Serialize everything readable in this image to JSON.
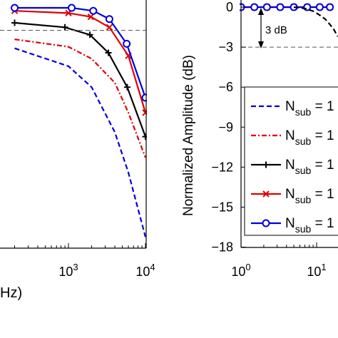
{
  "chart_data": [
    {
      "type": "line",
      "title": "",
      "xlabel": "Hz)",
      "ylabel": "",
      "x_scale": "log",
      "grid": false,
      "x_tick_labels": [
        {
          "base": "10",
          "exp": "3"
        },
        {
          "base": "10",
          "exp": "4"
        }
      ],
      "series": [
        {
          "color": "#0000dd",
          "linestyle": "dashed",
          "marker": "none",
          "x": [
            200,
            1000,
            2000,
            4000,
            6000,
            10000
          ],
          "y": [
            -2.7,
            -3.9,
            -5.3,
            -8.3,
            -11.0,
            -15.3
          ]
        },
        {
          "color": "#e00000",
          "linestyle": "dashdot",
          "marker": "none",
          "x": [
            200,
            1000,
            2000,
            4000,
            6000,
            10000
          ],
          "y": [
            -2.1,
            -2.6,
            -3.4,
            -5.0,
            -7.0,
            -10.0
          ]
        },
        {
          "color": "#000000",
          "linestyle": "solid",
          "marker": "plus",
          "x": [
            200,
            900,
            1900,
            3300,
            5800,
            10000
          ],
          "y": [
            -1.0,
            -1.3,
            -1.8,
            -3.0,
            -5.3,
            -8.6
          ]
        },
        {
          "color": "#e00000",
          "linestyle": "solid",
          "marker": "x",
          "x": [
            200,
            1000,
            1950,
            3400,
            6000,
            10000
          ],
          "y": [
            -0.2,
            -0.35,
            -0.6,
            -1.3,
            -3.2,
            -7.0
          ]
        },
        {
          "color": "#0000dd",
          "linestyle": "solid",
          "marker": "circle",
          "x": [
            200,
            1100,
            2100,
            3400,
            5700,
            10000
          ],
          "y": [
            0,
            0,
            -0.2,
            -0.75,
            -2.4,
            -6.0
          ]
        }
      ],
      "hline": {
        "y": -1.5,
        "style": "dashed"
      }
    },
    {
      "type": "line",
      "title": "",
      "xlabel": "",
      "ylabel": "Normalized Amplitude (dB)",
      "x_scale": "log",
      "grid": false,
      "ylim": [
        -18,
        0
      ],
      "y_tick_labels": [
        "0",
        "−3",
        "−6",
        "−9",
        "−12",
        "−15",
        "−18"
      ],
      "x_tick_labels": [
        {
          "base": "10",
          "exp": "0"
        },
        {
          "base": "10",
          "exp": "1"
        }
      ],
      "annotation": "3 dB",
      "hline": {
        "y": -3,
        "style": "dashed"
      },
      "legend": {
        "placement": "right",
        "entries": [
          {
            "main": "N",
            "sub": "sub",
            "trail": " = 1",
            "color": "#0000dd",
            "linestyle": "dashed",
            "marker": "none"
          },
          {
            "main": "N",
            "sub": "sub",
            "trail": " = 1",
            "color": "#e00000",
            "linestyle": "dashdot",
            "marker": "none"
          },
          {
            "main": "N",
            "sub": "sub",
            "trail": " = 1",
            "color": "#000000",
            "linestyle": "solid",
            "marker": "plus"
          },
          {
            "main": "N",
            "sub": "sub",
            "trail": " = 1",
            "color": "#e00000",
            "linestyle": "solid",
            "marker": "x"
          },
          {
            "main": "N",
            "sub": "sub",
            "trail": " = 1",
            "color": "#0000dd",
            "linestyle": "solid",
            "marker": "circle"
          }
        ]
      },
      "series": [
        {
          "color": "#e00000",
          "linestyle": "solid",
          "marker": "x",
          "x": [
            1,
            1.5,
            2.2,
            3.3,
            5,
            7.5,
            11,
            15
          ],
          "y": [
            0,
            0,
            0,
            0,
            0,
            0,
            0,
            0
          ]
        },
        {
          "color": "#0000dd",
          "linestyle": "solid",
          "marker": "circle",
          "x": [
            1,
            1.5,
            2.2,
            3.3,
            5,
            7.5,
            11,
            15
          ],
          "y": [
            0,
            0,
            0,
            0,
            0,
            0,
            0,
            0
          ]
        },
        {
          "color": "#000000",
          "linestyle": "dashed",
          "marker": "none",
          "x": [
            5,
            7,
            9,
            11,
            13,
            15,
            17,
            19
          ],
          "y": [
            0,
            -0.1,
            -0.3,
            -0.6,
            -0.9,
            -1.3,
            -1.7,
            -2.2
          ]
        }
      ]
    }
  ]
}
